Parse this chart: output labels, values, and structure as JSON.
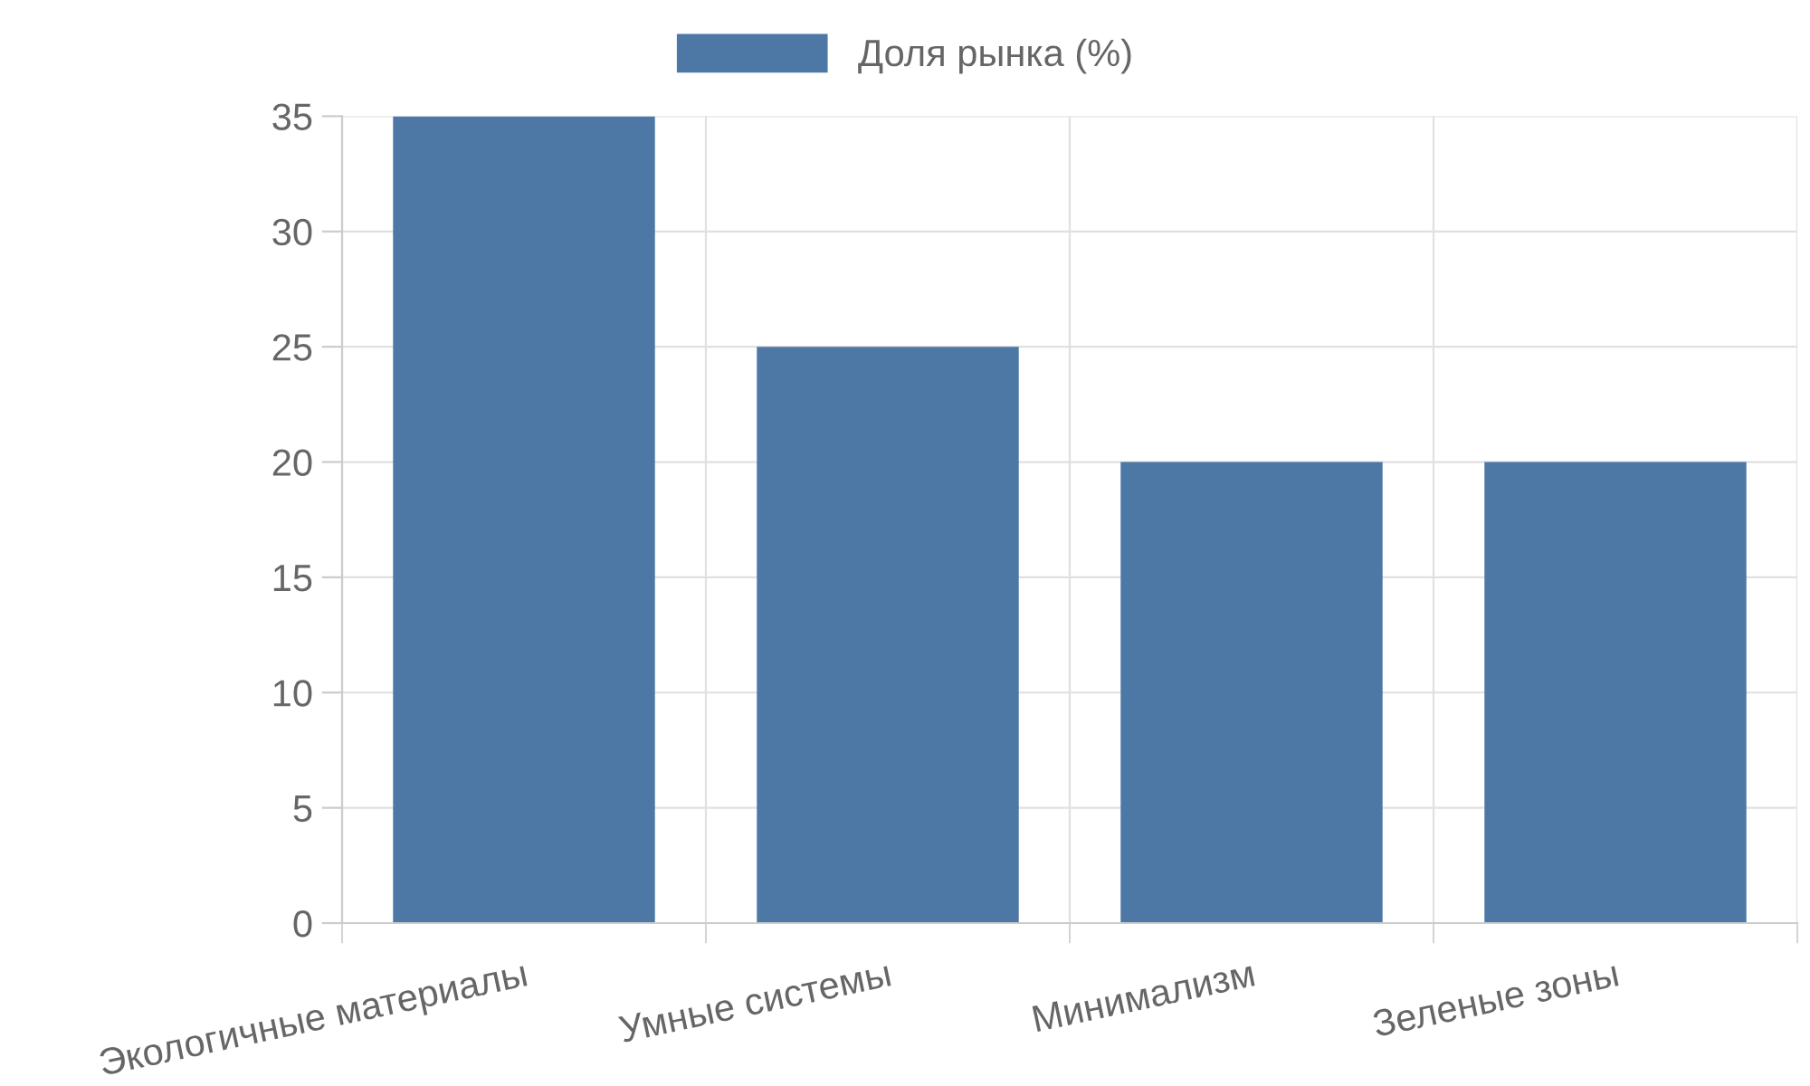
{
  "chart_data": {
    "type": "bar",
    "categories": [
      "Экологичные материалы",
      "Умные системы",
      "Минимализм",
      "Зеленые зоны"
    ],
    "series": [
      {
        "name": "Доля рынка (%)",
        "color": "#4d78a6",
        "values": [
          35,
          25,
          20,
          20
        ]
      }
    ],
    "ylim": [
      0,
      35
    ],
    "yticks": [
      0,
      5,
      10,
      15,
      20,
      25,
      30,
      35
    ],
    "grid": true,
    "legend": "top"
  }
}
